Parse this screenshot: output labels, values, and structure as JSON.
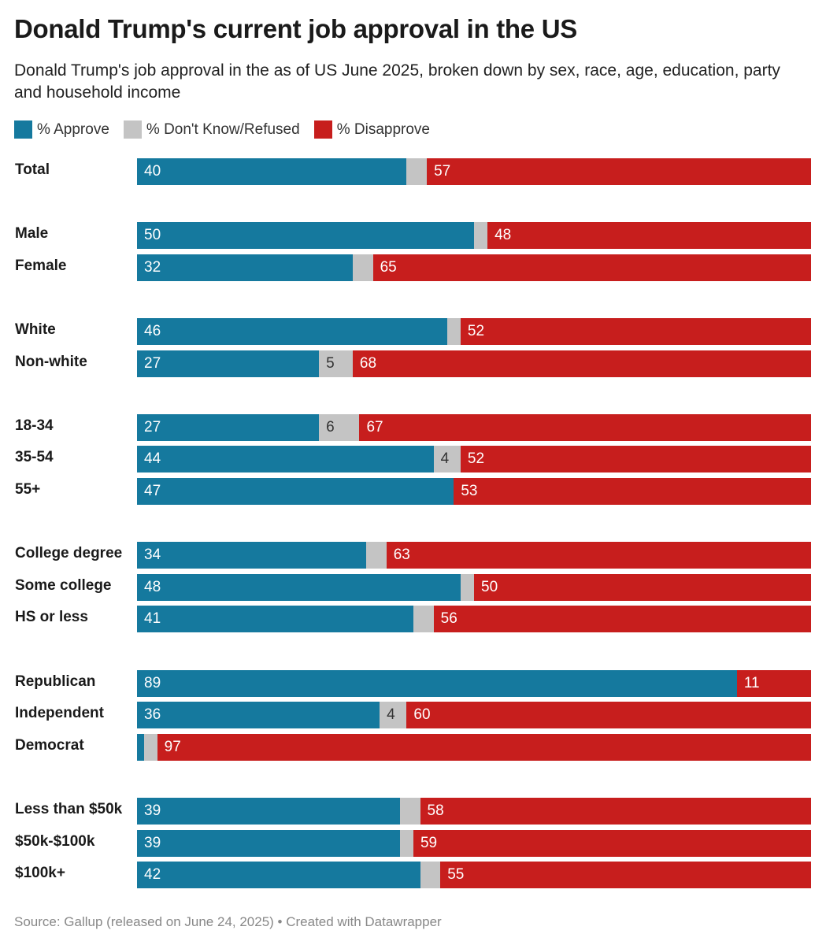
{
  "title": "Donald Trump's current job approval in the US",
  "subtitle": "Donald Trump's job approval in the as of US June 2025, broken down by sex, race, age, education, party and household income",
  "source": "Source: Gallup (released on June 24, 2025) • Created with Datawrapper",
  "chart_data": {
    "type": "bar",
    "orientation": "horizontal-stacked-100",
    "title": "Donald Trump's current job approval in the US",
    "legend_position": "top-left",
    "series": [
      {
        "name": "% Approve",
        "color": "#15799e"
      },
      {
        "name": "% Don't Know/Refused",
        "color": "#c4c4c4"
      },
      {
        "name": "% Disapprove",
        "color": "#c71e1d"
      }
    ],
    "groups": [
      [
        {
          "label": "Total",
          "values": [
            40,
            3,
            57
          ]
        }
      ],
      [
        {
          "label": "Male",
          "values": [
            50,
            2,
            48
          ]
        },
        {
          "label": "Female",
          "values": [
            32,
            3,
            65
          ]
        }
      ],
      [
        {
          "label": "White",
          "values": [
            46,
            2,
            52
          ]
        },
        {
          "label": "Non-white",
          "values": [
            27,
            5,
            68
          ]
        }
      ],
      [
        {
          "label": "18-34",
          "values": [
            27,
            6,
            67
          ]
        },
        {
          "label": "35-54",
          "values": [
            44,
            4,
            52
          ]
        },
        {
          "label": "55+",
          "values": [
            47,
            0,
            53
          ]
        }
      ],
      [
        {
          "label": "College degree",
          "values": [
            34,
            3,
            63
          ]
        },
        {
          "label": "Some college",
          "values": [
            48,
            2,
            50
          ]
        },
        {
          "label": "HS or less",
          "values": [
            41,
            3,
            56
          ]
        }
      ],
      [
        {
          "label": "Republican",
          "values": [
            89,
            0,
            11
          ]
        },
        {
          "label": "Independent",
          "values": [
            36,
            4,
            60
          ]
        },
        {
          "label": "Democrat",
          "values": [
            1,
            2,
            97
          ]
        }
      ],
      [
        {
          "label": "Less than $50k",
          "values": [
            39,
            3,
            58
          ]
        },
        {
          "label": "$50k-$100k",
          "values": [
            39,
            2,
            59
          ]
        },
        {
          "label": "$100k+",
          "values": [
            42,
            3,
            55
          ]
        }
      ]
    ]
  }
}
